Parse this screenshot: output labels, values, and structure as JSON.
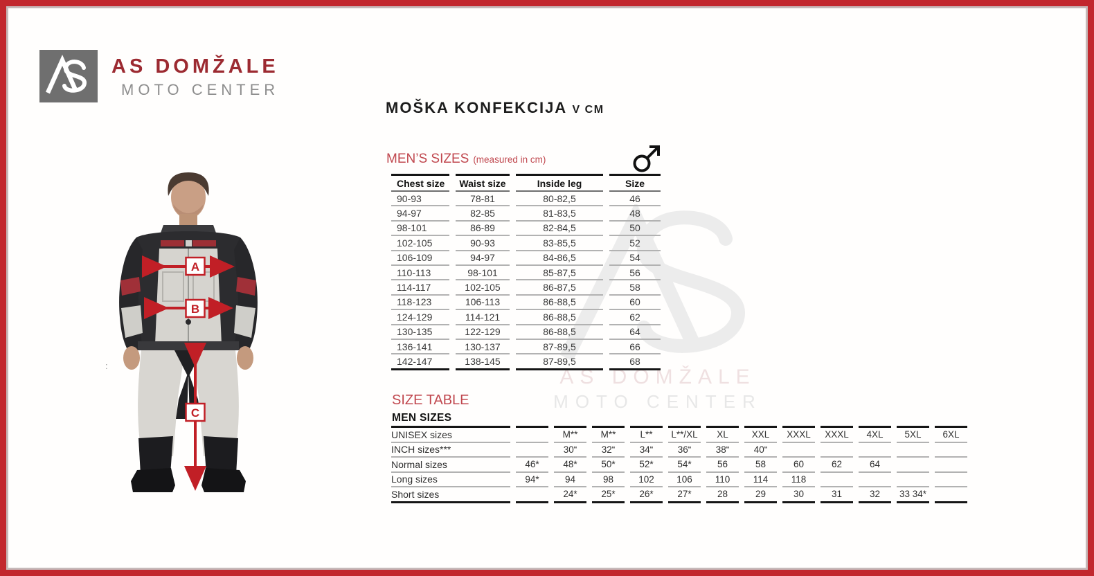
{
  "branding": {
    "monogram": "AS",
    "name": "AS DOMŽALE",
    "subtitle": "MOTO CENTER"
  },
  "page_title": {
    "main": "MOŠKA KONFEKCIJA",
    "suffix": "v cm"
  },
  "mens_sizes_table": {
    "heading": "MEN’S SIZES",
    "note": "(measured in cm)",
    "gender_icon": "male-symbol",
    "columns": [
      "Chest size",
      "Waist size",
      "Inside leg",
      "Size"
    ],
    "rows": [
      [
        "90-93",
        "78-81",
        "80-82,5",
        "46"
      ],
      [
        "94-97",
        "82-85",
        "81-83,5",
        "48"
      ],
      [
        "98-101",
        "86-89",
        "82-84,5",
        "50"
      ],
      [
        "102-105",
        "90-93",
        "83-85,5",
        "52"
      ],
      [
        "106-109",
        "94-97",
        "84-86,5",
        "54"
      ],
      [
        "110-113",
        "98-101",
        "85-87,5",
        "56"
      ],
      [
        "114-117",
        "102-105",
        "86-87,5",
        "58"
      ],
      [
        "118-123",
        "106-113",
        "86-88,5",
        "60"
      ],
      [
        "124-129",
        "114-121",
        "86-88,5",
        "62"
      ],
      [
        "130-135",
        "122-129",
        "86-88,5",
        "64"
      ],
      [
        "136-141",
        "130-137",
        "87-89,5",
        "66"
      ],
      [
        "142-147",
        "138-145",
        "87-89,5",
        "68"
      ]
    ]
  },
  "size_table": {
    "heading": "SIZE TABLE",
    "subheading": "MEN SIZES",
    "rows": [
      {
        "label": "UNISEX sizes",
        "cells": [
          "",
          "M**",
          "M**",
          "L**",
          "L**/XL",
          "XL",
          "XXL",
          "XXXL",
          "XXXL",
          "4XL",
          "5XL",
          "6XL"
        ]
      },
      {
        "label": "INCH sizes***",
        "cells": [
          "",
          "30“",
          "32“",
          "34“",
          "36“",
          "38“",
          "40“",
          "",
          "",
          "",
          "",
          ""
        ]
      },
      {
        "label": "Normal sizes",
        "cells": [
          "46*",
          "48*",
          "50*",
          "52*",
          "54*",
          "56",
          "58",
          "60",
          "62",
          "64",
          "",
          ""
        ]
      },
      {
        "label": "Long sizes",
        "cells": [
          "94*",
          "94",
          "98",
          "102",
          "106",
          "110",
          "114",
          "118",
          "",
          "",
          "",
          ""
        ]
      },
      {
        "label": "Short sizes",
        "cells": [
          "",
          "24*",
          "25*",
          "26*",
          "27*",
          "28",
          "29",
          "30",
          "31",
          "32",
          "33  34*",
          ""
        ]
      }
    ]
  },
  "figure": {
    "labels": [
      "A",
      "B",
      "C"
    ],
    "stray_mark": ":"
  },
  "watermark": {
    "name": "AS DOMŽALE",
    "subtitle": "MOTO CENTER"
  },
  "colors": {
    "border_red": "#c2282e",
    "accent_red": "#c0474e",
    "logo_red": "#9c2a31",
    "arrow_red": "#c11f26"
  }
}
